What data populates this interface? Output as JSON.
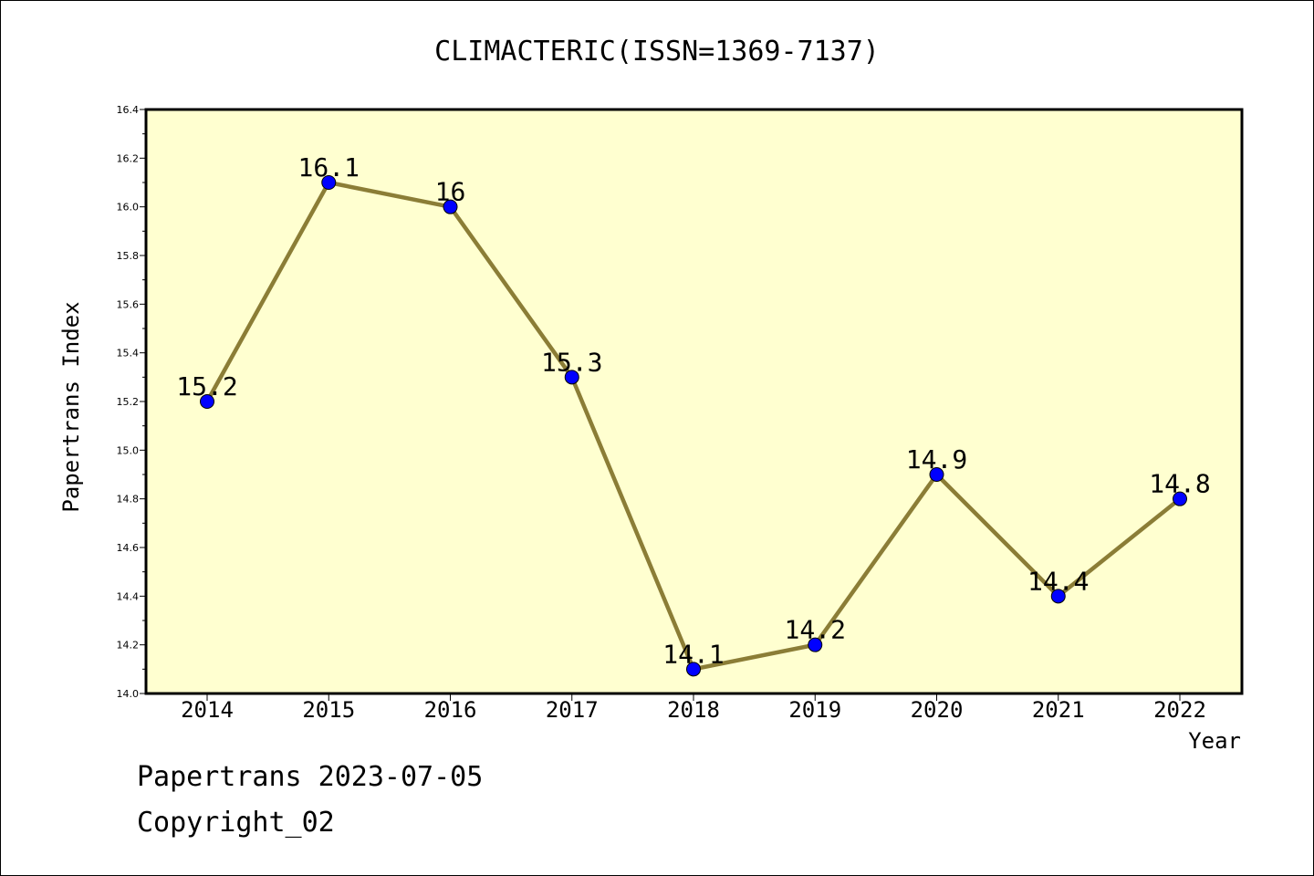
{
  "chart_data": {
    "type": "line",
    "title": "CLIMACTERIC(ISSN=1369-7137)",
    "xlabel": "Year",
    "ylabel": "Papertrans Index",
    "categories": [
      "2014",
      "2015",
      "2016",
      "2017",
      "2018",
      "2019",
      "2020",
      "2021",
      "2022"
    ],
    "series": [
      {
        "values": [
          15.2,
          16.1,
          16.0,
          15.3,
          14.1,
          14.2,
          14.9,
          14.4,
          14.8
        ]
      }
    ],
    "point_labels": [
      "15.2",
      "16.1",
      "16",
      "15.3",
      "14.1",
      "14.2",
      "14.9",
      "14.4",
      "14.8"
    ],
    "ylim": [
      14.0,
      16.4
    ],
    "yticks": [
      "14.0",
      "14.2",
      "14.4",
      "14.6",
      "14.8",
      "15.0",
      "15.2",
      "15.4",
      "15.6",
      "15.8",
      "16.0",
      "16.2",
      "16.4"
    ],
    "grid": false,
    "colors": {
      "plot_bg": "#ffffd0",
      "line": "#8b7d36",
      "marker": "#0000ff"
    }
  },
  "footer": {
    "date_line": "Papertrans 2023-07-05",
    "copyright": "Copyright_02"
  }
}
